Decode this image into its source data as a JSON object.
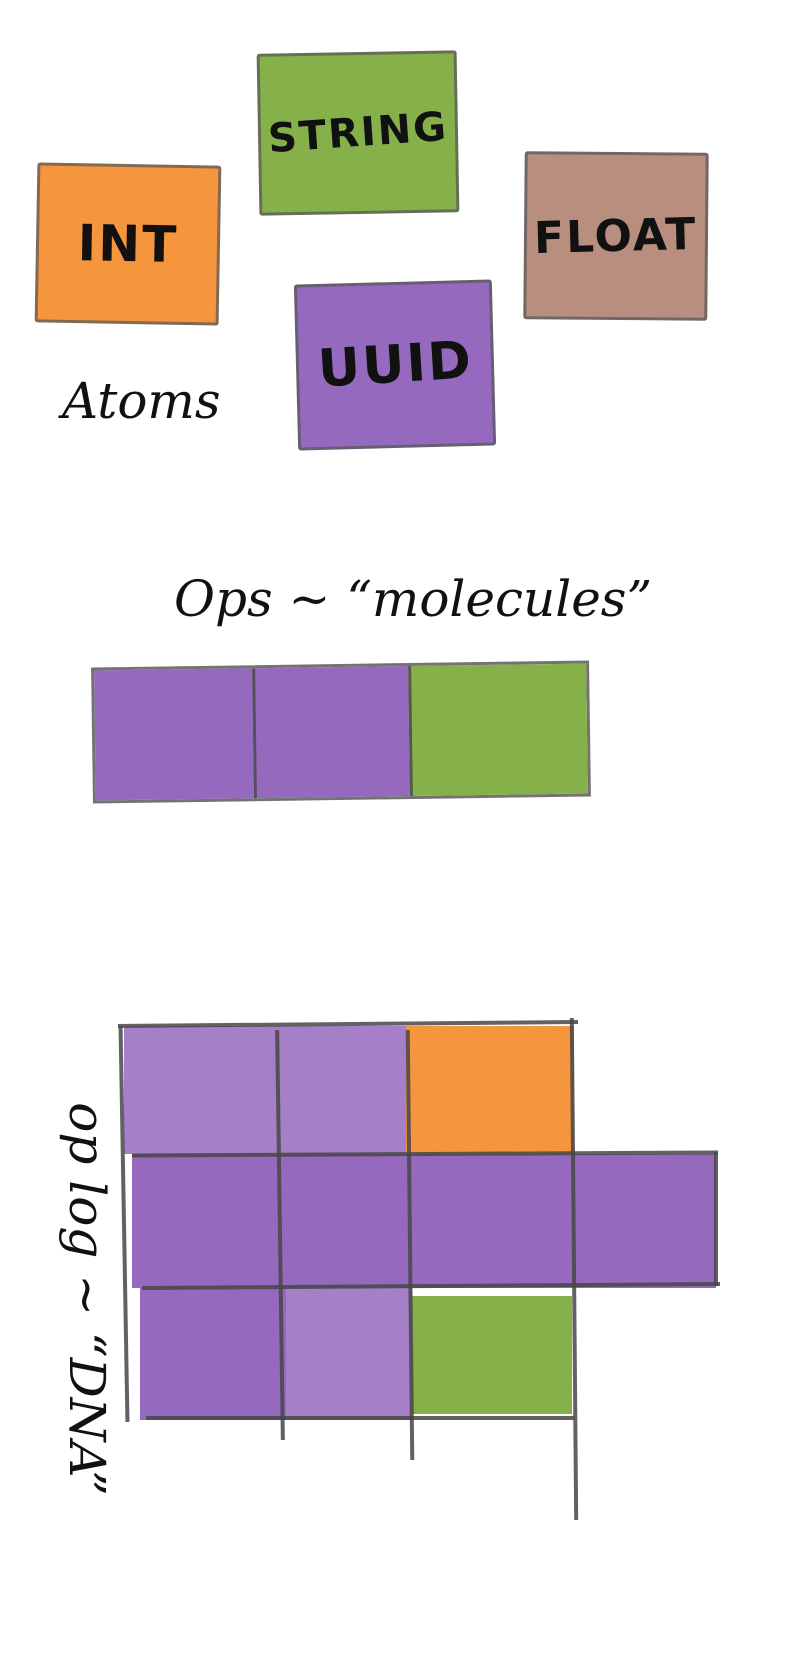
{
  "atoms": {
    "caption": "Atoms",
    "tiles": [
      {
        "id": "string",
        "label": "STRING",
        "color": "#86b04a"
      },
      {
        "id": "int",
        "label": "INT",
        "color": "#f5963f"
      },
      {
        "id": "float",
        "label": "FLOAT",
        "color": "#b88f7f"
      },
      {
        "id": "uuid",
        "label": "UUID",
        "color": "#9569bd"
      }
    ]
  },
  "ops": {
    "caption": "Ops ~ “molecules”",
    "cells": [
      "#9569bd",
      "#9569bd",
      "#86b04a"
    ]
  },
  "oplog": {
    "caption": "op log ~ “DNA”",
    "rows": [
      [
        "#9569bd",
        "#9569bd",
        "#f5963f"
      ],
      [
        "#9569bd",
        "#9569bd",
        "#9569bd",
        "#9569bd"
      ],
      [
        "#9569bd",
        "#9569bd",
        "#86b04a"
      ]
    ]
  }
}
